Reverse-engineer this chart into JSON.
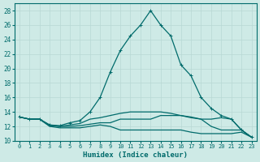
{
  "title": "",
  "xlabel": "Humidex (Indice chaleur)",
  "ylabel": "",
  "bg_color": "#ceeae6",
  "grid_color": "#b8d8d4",
  "line_color": "#006b6b",
  "xlim": [
    -0.5,
    23.5
  ],
  "ylim": [
    10,
    29
  ],
  "yticks": [
    10,
    12,
    14,
    16,
    18,
    20,
    22,
    24,
    26,
    28
  ],
  "xticks": [
    0,
    1,
    2,
    3,
    4,
    5,
    6,
    7,
    8,
    9,
    10,
    11,
    12,
    13,
    14,
    15,
    16,
    17,
    18,
    19,
    20,
    21,
    22,
    23
  ],
  "series1_x": [
    0,
    1,
    2,
    3,
    4,
    5,
    6,
    7,
    8,
    9,
    10,
    11,
    12,
    13,
    14,
    15,
    16,
    17,
    18,
    19,
    20,
    21,
    22,
    23
  ],
  "series1_y": [
    13.3,
    13.0,
    13.0,
    12.2,
    12.1,
    12.5,
    12.8,
    14.0,
    16.0,
    19.5,
    22.5,
    24.5,
    26.0,
    28.0,
    26.0,
    24.5,
    20.5,
    19.0,
    16.0,
    14.5,
    13.5,
    13.0,
    11.5,
    10.5
  ],
  "series2_x": [
    0,
    1,
    2,
    3,
    4,
    5,
    6,
    7,
    8,
    9,
    10,
    11,
    12,
    13,
    14,
    15,
    16,
    17,
    18,
    19,
    20,
    21,
    22,
    23
  ],
  "series2_y": [
    13.3,
    13.0,
    13.0,
    12.2,
    12.0,
    12.2,
    12.4,
    13.0,
    13.2,
    13.5,
    13.8,
    14.0,
    14.0,
    14.0,
    14.0,
    13.8,
    13.5,
    13.2,
    13.0,
    13.0,
    13.2,
    13.0,
    11.5,
    10.5
  ],
  "series3_x": [
    0,
    1,
    2,
    3,
    4,
    5,
    6,
    7,
    8,
    9,
    10,
    11,
    12,
    13,
    14,
    15,
    16,
    17,
    18,
    19,
    20,
    21,
    22,
    23
  ],
  "series3_y": [
    13.3,
    13.0,
    13.0,
    12.1,
    12.0,
    12.0,
    12.1,
    12.3,
    12.5,
    12.5,
    13.0,
    13.0,
    13.0,
    13.0,
    13.5,
    13.5,
    13.5,
    13.3,
    13.0,
    12.0,
    11.5,
    11.5,
    11.5,
    10.5
  ],
  "series4_x": [
    0,
    1,
    2,
    3,
    4,
    5,
    6,
    7,
    8,
    9,
    10,
    11,
    12,
    13,
    14,
    15,
    16,
    17,
    18,
    19,
    20,
    21,
    22,
    23
  ],
  "series4_y": [
    13.3,
    13.0,
    13.0,
    12.0,
    11.8,
    11.8,
    11.8,
    12.0,
    12.2,
    12.0,
    11.5,
    11.5,
    11.5,
    11.5,
    11.5,
    11.5,
    11.5,
    11.2,
    11.0,
    11.0,
    11.0,
    11.0,
    11.2,
    10.5
  ],
  "marker": "+",
  "marker_size": 3.5,
  "linewidth": 0.9
}
